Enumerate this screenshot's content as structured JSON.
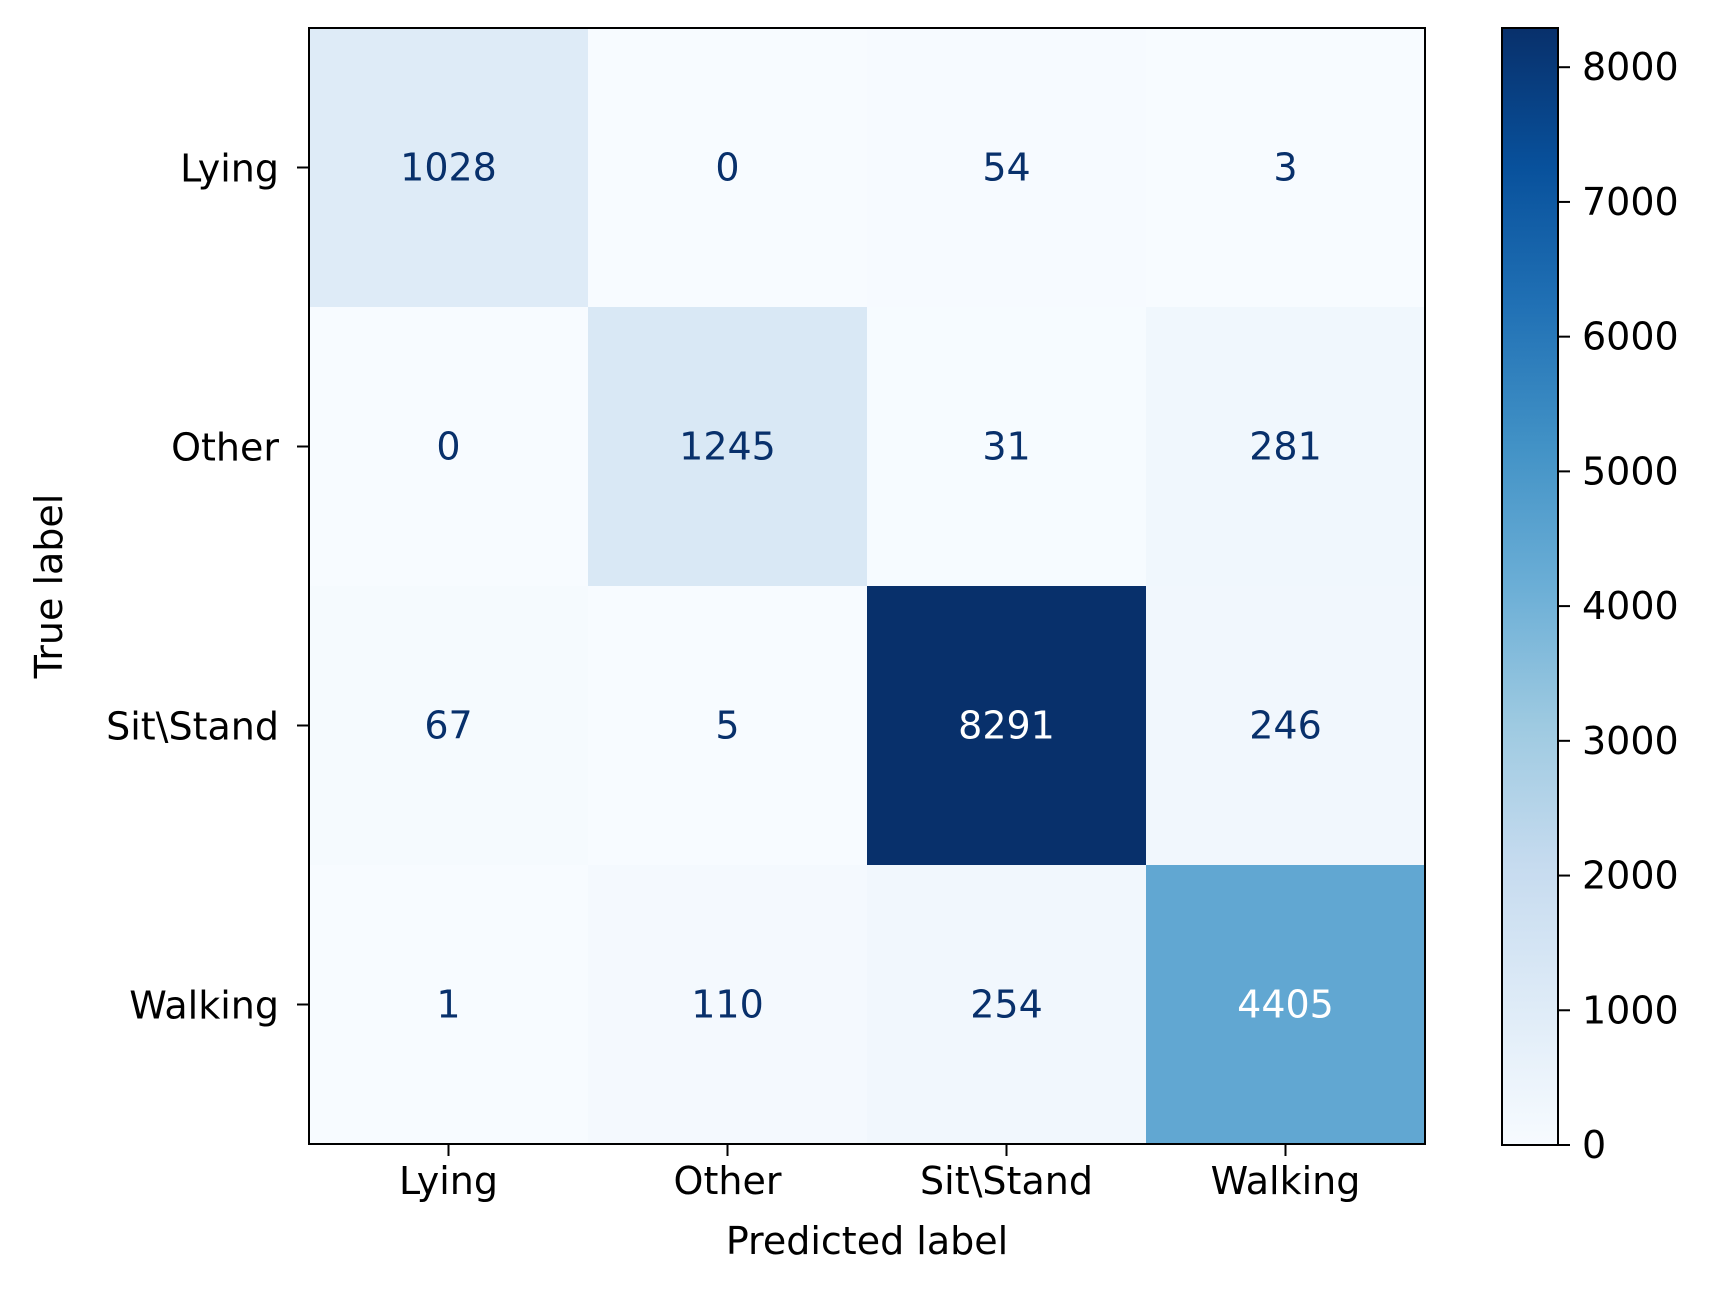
{
  "chart_data": {
    "type": "heatmap",
    "subtype": "confusion_matrix",
    "title": "",
    "xlabel": "Predicted label",
    "ylabel": "True label",
    "x_categories": [
      "Lying",
      "Other",
      "Sit\\Stand",
      "Walking"
    ],
    "y_categories": [
      "Lying",
      "Other",
      "Sit\\Stand",
      "Walking"
    ],
    "values": [
      [
        1028,
        0,
        54,
        3
      ],
      [
        0,
        1245,
        31,
        281
      ],
      [
        67,
        5,
        8291,
        246
      ],
      [
        1,
        110,
        254,
        4405
      ]
    ],
    "colormap": "Blues",
    "colormap_stops": [
      "#f7fbff",
      "#deebf7",
      "#c6dbef",
      "#9ecae1",
      "#6baed6",
      "#4292c6",
      "#2171b5",
      "#08519c",
      "#08306b"
    ],
    "value_range": [
      0,
      8291
    ],
    "colorbar_ticks": [
      0,
      1000,
      2000,
      3000,
      4000,
      5000,
      6000,
      7000,
      8000
    ],
    "text_colors": {
      "dark": "#08306b",
      "light": "#ffffff"
    }
  }
}
